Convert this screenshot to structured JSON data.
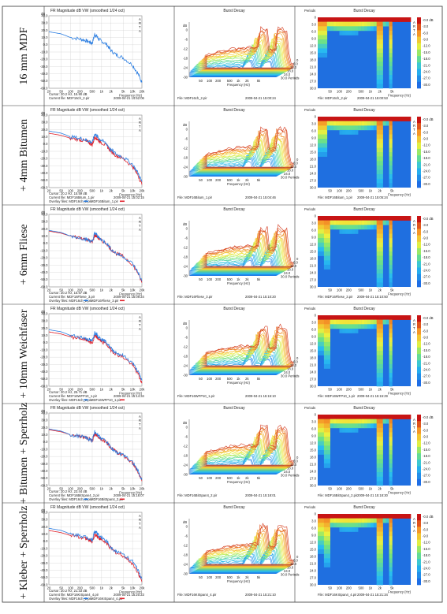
{
  "rows": [
    {
      "label": "16 mm MDF",
      "fr": {
        "title": "FR Magnitude dB VW (smoothed 1/24 oct)",
        "cursor": "Cursor: 20.2 Hz, 15.90 dB",
        "current_file": "Current file: MDF16ch_2.pir",
        "current_date": "2009-04-21  14:52:06",
        "overlay_file": "",
        "overlay_date": ""
      },
      "wf": {
        "title": "Burst Decay",
        "file": "File: MDF16ch_2.pir",
        "date": "2009-04-21  15:00:24"
      },
      "bd": {
        "title": "Burst Decay",
        "file": "File: MDF16ch_2.pir",
        "date": "2009-04-21  15:00:53"
      }
    },
    {
      "label": "+ 4mm Bitumen",
      "fr": {
        "title": "FR Magnitude dB VW (smoothed 1/24 oct)",
        "cursor": "Cursor: 20.2 Hz, 15.59 dB",
        "current_file": "Current file: MDF16Bitum_1.pir",
        "current_date": "2009-04-21  15:02:15",
        "overlay_file": "Overlay files: MDF16ch_2.pir",
        "overlay_date": "MDF16Bitum_1.pir"
      },
      "wf": {
        "title": "Burst Decay",
        "file": "File: MDF16Bitum_1.pir",
        "date": "2009-04-21  15:04:46"
      },
      "bd": {
        "title": "Burst Decay",
        "file": "File: MDF16Bitum_1.pir",
        "date": "2009-04-21  15:05:24"
      }
    },
    {
      "label": "+ 6mm Fliese",
      "fr": {
        "title": "FR Magnitude dB VW (smoothed 1/24 oct)",
        "cursor": "Cursor: 20.2 Hz, 15.67 dB",
        "current_file": "Current file: MDF16Fliese_3.pir",
        "current_date": "2009-04-21  15:09:24",
        "overlay_file": "Overlay files: MDF16ch_2.pir",
        "overlay_date": "MDF16Fliese_3.pir"
      },
      "wf": {
        "title": "Burst Decay",
        "file": "File: MDF16Fliese_3.pir",
        "date": "2009-04-21  15:10:20"
      },
      "bd": {
        "title": "Burst Decay",
        "file": "File: MDF16Fliese_3.pir",
        "date": "2009-04-21  15:10:50"
      }
    },
    {
      "label": "+ 10mm Weichfaser",
      "fr": {
        "title": "FR Magnitude dB VW (smoothed 1/24 oct)",
        "cursor": "Cursor: 20.2 Hz, 25.71 dB",
        "current_file": "Current file: MDF16WFP10_1.pir",
        "current_date": "2009-04-21  15:14:34",
        "overlay_file": "Overlay files: MDF16ch_2.pir",
        "overlay_date": "MDF16WFP10_1.pir"
      },
      "wf": {
        "title": "Burst Decay",
        "file": "File: MDF16WFP10_1.pir",
        "date": "2009-04-21  15:15:10"
      },
      "bd": {
        "title": "Burst Decay",
        "file": "File: MDF16WFP10_1.pir",
        "date": "2009-04-21  15:15:29"
      }
    },
    {
      "label": "+ Bitumen + Sperrholz",
      "fr": {
        "title": "FR Magnitude dB VW (smoothed 1/24 oct)",
        "cursor": "Cursor: 20.2 Hz, 23.44 dB",
        "current_file": "Current file: MDF16BitSpan4_2.pir",
        "current_date": "2009-04-21  15:18:07",
        "overlay_file": "Overlay files: MDF16ch_2.pir",
        "overlay_date": "MDF16BitSpan4_2.pir"
      },
      "wf": {
        "title": "Burst Decay",
        "file": "File: MDF16BitSpan4_2.pir",
        "date": "2009-04-21  15:18:01"
      },
      "bd": {
        "title": "Burst Decay",
        "file": "File: MDF16BitSpan4_2.pir",
        "date": "2009-04-21  15:18:30"
      }
    },
    {
      "label": "+ Kleber + Sperrholz",
      "fr": {
        "title": "FR Magnitude dB VW (smoothed 1/24 oct)",
        "cursor": "Cursor: 20.2 Hz, 21.33 dB",
        "current_file": "Current file: MDF16KISpan4_4.pir",
        "current_date": "2009-04-21  15:20:23",
        "overlay_file": "Overlay files: MDF16ch_2.pir",
        "overlay_date": "MDF16KISpan4_4.pir"
      },
      "wf": {
        "title": "Burst Decay",
        "file": "File: MDF16KISpan4_4.pir",
        "date": "2009-04-21  15:21:10"
      },
      "bd": {
        "title": "Burst Decay",
        "file": "File: MDF16KISpan4_4.pir",
        "date": "2009-04-21  15:21:34"
      }
    }
  ],
  "arta_label": "ARTA",
  "fr_axes": {
    "y_ticks": [
      "40.0",
      "30.0",
      "20.0",
      "10.0",
      "0.0",
      "-10.0",
      "-20.0",
      "-30.0",
      "-40.0",
      "-50.0",
      "-60.0"
    ],
    "x_ticks": [
      "20",
      "50",
      "100",
      "200",
      "500",
      "1k",
      "2k",
      "5k",
      "10k",
      "20k"
    ],
    "xlabel": "Frequency (Hz)",
    "ylabel": "dB"
  },
  "wf_axes": {
    "x_ticks": [
      "50",
      "100",
      "200",
      "500",
      "1k",
      "2k",
      "5k"
    ],
    "xlabel": "Frequency (Hz)",
    "period_ticks": [
      "0",
      "6.0",
      "12.0",
      "18.0",
      "24.0",
      "30.0 Periods"
    ],
    "db_label": "dB",
    "db_ticks": [
      "0",
      "-6",
      "-12",
      "-18",
      "-24",
      "-30"
    ]
  },
  "bd_axes": {
    "x_ticks": [
      "50",
      "100",
      "200",
      "500",
      "1k",
      "2k",
      "5k"
    ],
    "xlabel": "Frequency (Hz)",
    "y_title": "Periods",
    "y_ticks": [
      "0",
      "3.0",
      "6.0",
      "9.0",
      "12.0",
      "15.0",
      "18.0",
      "21.0",
      "24.0",
      "27.0",
      "30.0"
    ],
    "scale": [
      "-0.0 dB",
      "-3.0",
      "-6.0",
      "-9.0",
      "-12.0",
      "-15.0",
      "-18.0",
      "-21.0",
      "-24.0",
      "-27.0",
      "-30.0"
    ]
  },
  "chart_data": [
    {
      "type": "line",
      "chart": "frequency-response",
      "title": "FR Magnitude dB VW (smoothed 1/24 oct)",
      "xlabel": "Frequency (Hz)",
      "ylabel": "dB",
      "xlim": [
        20,
        20000
      ],
      "ylim": [
        -60,
        40
      ],
      "x_scale": "log",
      "grid": true,
      "x": [
        20,
        50,
        100,
        200,
        300,
        400,
        500,
        600,
        700,
        800,
        1000,
        1500,
        2000,
        3000,
        5000,
        10000,
        15000,
        20000
      ],
      "series": [
        {
          "color": "#2a7de1",
          "values": [
            18,
            15,
            10,
            8,
            6,
            4,
            2,
            14,
            12,
            8,
            5,
            0,
            -8,
            -14,
            -18,
            -28,
            -40,
            -52
          ]
        },
        {
          "color": "#e0202a",
          "values": [
            16,
            13,
            9,
            7,
            5,
            3,
            0,
            10,
            9,
            6,
            3,
            -2,
            -9,
            -15,
            -19,
            -30,
            -42,
            -55
          ]
        }
      ]
    },
    {
      "type": "heatmap",
      "chart": "burst-decay",
      "title": "Burst Decay",
      "xlabel": "Frequency (Hz)",
      "ylabel": "Periods",
      "xlim": [
        20,
        20000
      ],
      "ylim": [
        0,
        30
      ],
      "color_scale_db": [
        0,
        -30
      ]
    }
  ]
}
